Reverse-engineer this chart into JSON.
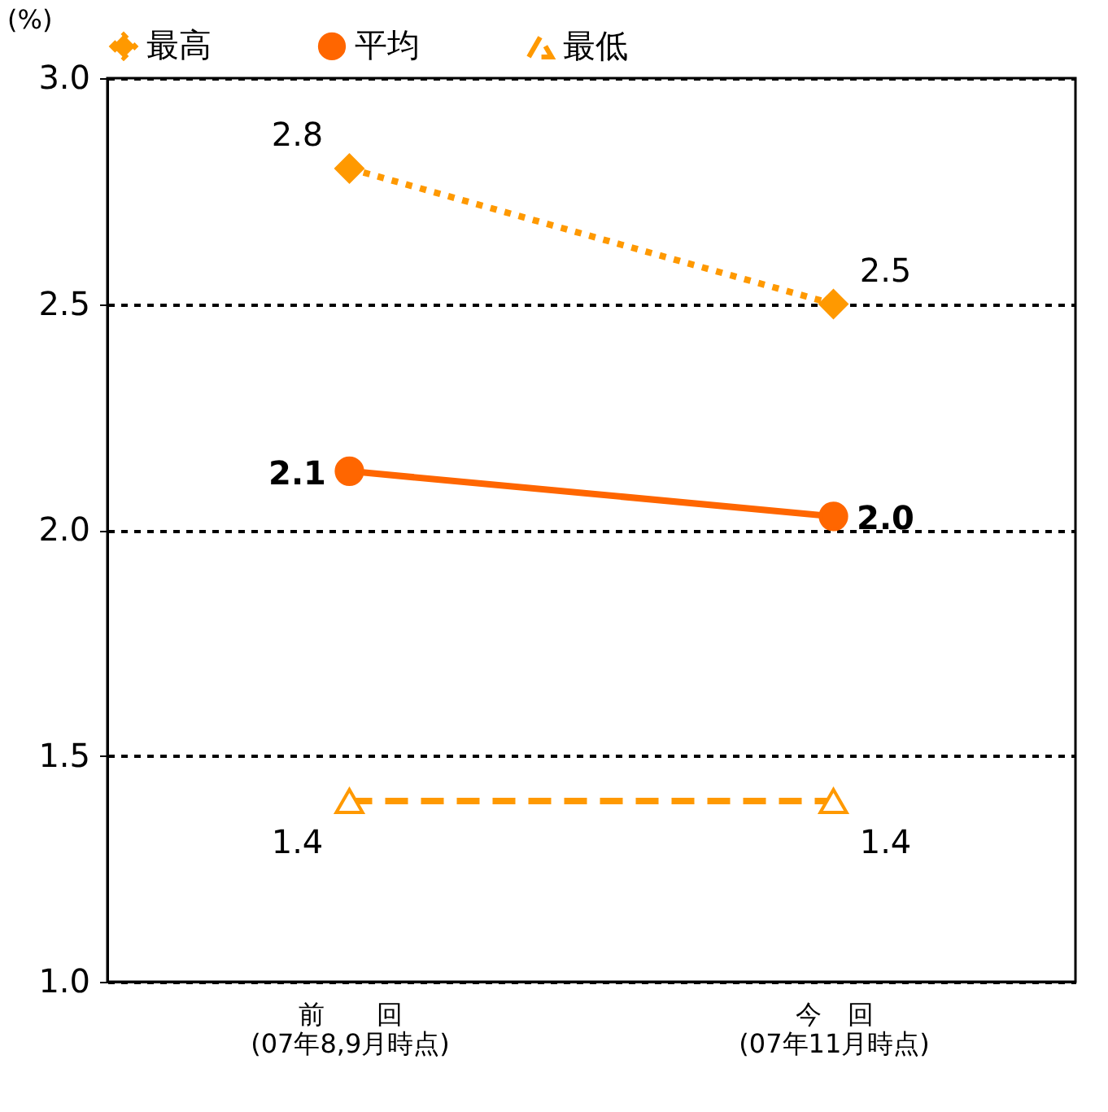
{
  "chart_data": {
    "type": "line",
    "ylabel": "(%)",
    "categories": [
      "前　　回\n(07年8,9月時点)",
      "今　回\n(07年11月時点)"
    ],
    "series": [
      {
        "name": "最高",
        "color": "#ff9900",
        "values": [
          2.8,
          2.5
        ],
        "marker": "diamond",
        "line_style": "dotted",
        "value_labels": [
          "2.8",
          "2.5"
        ]
      },
      {
        "name": "平均",
        "color": "#ff6600",
        "values": [
          2.13,
          2.03
        ],
        "marker": "circle",
        "line_style": "solid",
        "value_labels": [
          "2.1",
          "2.0"
        ]
      },
      {
        "name": "最低",
        "color": "#ff9900",
        "values": [
          1.4,
          1.4
        ],
        "marker": "triangle",
        "line_style": "dashed",
        "value_labels": [
          "1.4",
          "1.4"
        ]
      }
    ],
    "ylim": [
      1.0,
      3.0
    ],
    "yticks": [
      {
        "value": 1,
        "label": "1.0"
      },
      {
        "value": 1.5,
        "label": "1.5"
      },
      {
        "value": 2,
        "label": "2.0"
      },
      {
        "value": 2.5,
        "label": "2.5"
      },
      {
        "value": 3,
        "label": "3.0"
      }
    ],
    "grid": "y",
    "legend": "top"
  }
}
